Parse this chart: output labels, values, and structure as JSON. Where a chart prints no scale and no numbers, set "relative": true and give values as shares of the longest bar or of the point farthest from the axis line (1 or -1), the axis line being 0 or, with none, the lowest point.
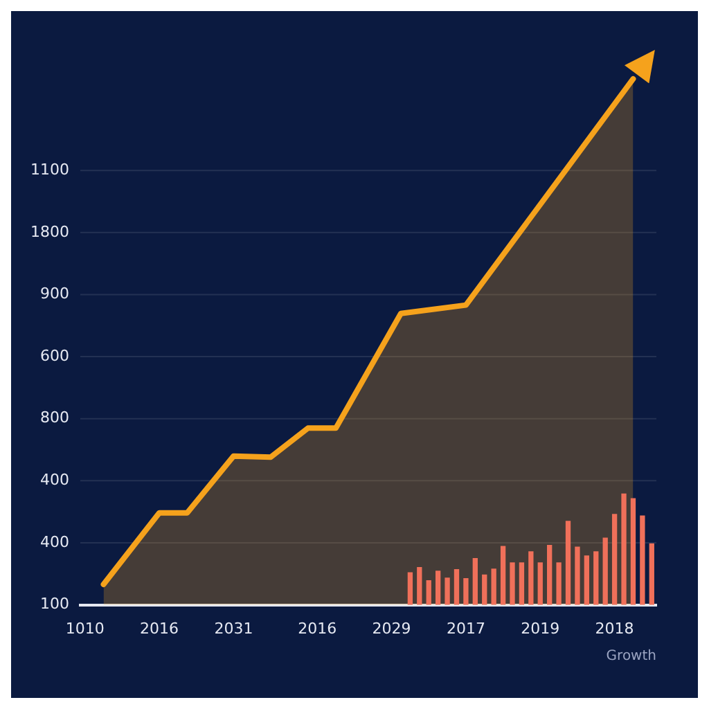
{
  "chart_data": {
    "type": "area",
    "xlabel": "Growth",
    "relative": true,
    "categories": [
      "1010",
      null,
      null,
      null,
      null,
      null,
      null,
      null,
      "2016",
      null,
      null,
      null,
      null,
      null,
      null,
      null,
      "2031",
      null,
      null,
      null,
      null,
      null,
      null,
      null,
      null,
      "2016",
      null,
      null,
      null,
      null,
      null,
      null,
      null,
      "2029",
      null,
      null,
      null,
      null,
      null,
      null,
      null,
      "2017",
      null,
      null,
      null,
      null,
      null,
      null,
      null,
      "2019",
      null,
      null,
      null,
      null,
      null,
      null,
      null,
      "2018",
      null,
      null,
      null,
      null
    ],
    "annotations": [
      "100",
      "400",
      "400",
      "800",
      "600",
      "900",
      "1800",
      "1100"
    ],
    "grid": "y",
    "marker": "none",
    "series": [
      {
        "color": "#f5a21c",
        "values": [
          null,
          null,
          0.039,
          null,
          null,
          null,
          null,
          null,
          0.175,
          null,
          null,
          0.175,
          null,
          null,
          null,
          null,
          0.283,
          null,
          null,
          null,
          0.281,
          null,
          null,
          null,
          0.336,
          null,
          null,
          0.336,
          null,
          null,
          null,
          null,
          null,
          null,
          0.554,
          null,
          null,
          null,
          null,
          null,
          null,
          0.57,
          null,
          null,
          null,
          null,
          null,
          null,
          null,
          null,
          null,
          null,
          null,
          null,
          null,
          null,
          null,
          null,
          null,
          1,
          null,
          null
        ]
      },
      {
        "type": "bar",
        "color": "#f0705a",
        "values": [
          null,
          null,
          null,
          null,
          null,
          null,
          null,
          null,
          null,
          null,
          null,
          null,
          null,
          null,
          null,
          null,
          null,
          null,
          null,
          null,
          null,
          null,
          null,
          null,
          null,
          null,
          null,
          null,
          null,
          null,
          null,
          null,
          null,
          null,
          null,
          0.061,
          0.071,
          0.046,
          0.064,
          0.051,
          0.067,
          0.05,
          0.088,
          0.057,
          0.068,
          0.111,
          0.08,
          0.08,
          0.101,
          0.08,
          0.113,
          0.08,
          0.159,
          0.11,
          0.093,
          0.101,
          0.127,
          0.172,
          0.211,
          0.202,
          0.169,
          0.116
        ]
      }
    ]
  }
}
